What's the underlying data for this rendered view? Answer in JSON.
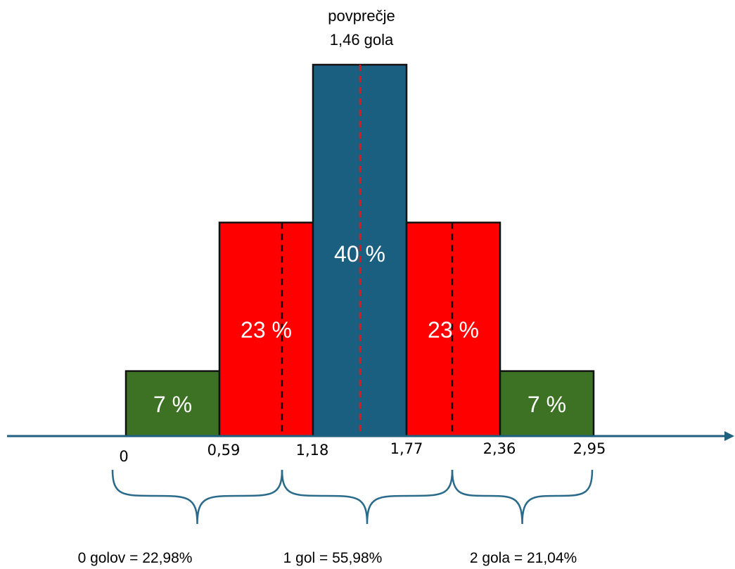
{
  "chart_data": {
    "type": "bar",
    "mean_label": [
      "povprečje",
      "1,46 gola"
    ],
    "mean_value": 1.46,
    "bars": [
      {
        "label": "7 %",
        "value": 7,
        "color": "#3d7225"
      },
      {
        "label": "23 %",
        "value": 23,
        "color": "#ff0000"
      },
      {
        "label": "40 %",
        "value": 40,
        "color": "#1a5f80"
      },
      {
        "label": "23 %",
        "value": 23,
        "color": "#ff0000"
      },
      {
        "label": "7 %",
        "value": 7,
        "color": "#3d7225"
      }
    ],
    "ticks": [
      "0",
      "0,59",
      "1,18",
      "1,77",
      "2,36",
      "2,95"
    ],
    "tick_values": [
      0,
      0.59,
      1.18,
      1.77,
      2.36,
      2.95
    ],
    "group_summaries": [
      "0 golov = 22,98%",
      "1 gol = 55,98%",
      "2 gola = 21,04%"
    ],
    "group_boundaries": [
      0.59,
      1.18,
      1.77,
      2.36,
      2.95
    ],
    "dashed_markers": [
      1.18,
      1.77
    ],
    "colors": {
      "axis": "#1f5f7f",
      "mean_line": "#e8121b",
      "brace": "#2a6a8a"
    }
  }
}
